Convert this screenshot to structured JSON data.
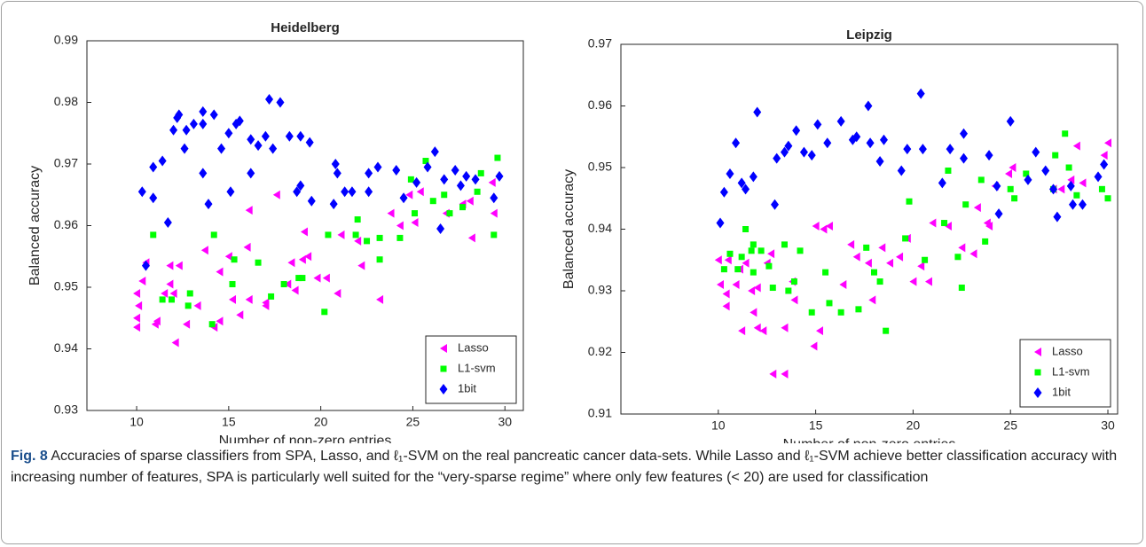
{
  "chart_data": [
    {
      "type": "scatter",
      "title": "Heidelberg",
      "x_label": "Number of non-zero entries",
      "y_label": "Balanced accuracy",
      "xlim": [
        7.3,
        31
      ],
      "ylim": [
        0.93,
        0.99
      ],
      "xticks": [
        10,
        15,
        20,
        25,
        30
      ],
      "yticks": [
        0.93,
        0.94,
        0.95,
        0.96,
        0.97,
        0.98,
        0.99
      ],
      "legend": "lower right",
      "series": [
        {
          "name": "Lasso",
          "color": "#ff00ff",
          "marker": "triangle-left",
          "x": [
            10,
            10,
            10.1,
            10,
            10.3,
            10.5,
            11,
            11.1,
            11.5,
            11.8,
            11.8,
            12,
            12.1,
            12.3,
            12.7,
            13.3,
            13.7,
            14.2,
            14.5,
            14.5,
            15,
            15.2,
            15.6,
            16,
            16.1,
            16.1,
            17,
            17,
            17.6,
            18.2,
            18.4,
            18.6,
            19,
            19.1,
            19.3,
            19.8,
            20.3,
            20.9,
            21.1,
            22,
            22.2,
            23.2,
            23.8,
            24.3,
            24.8,
            25.1,
            25.4,
            26.8,
            27.7,
            28.1,
            28.2,
            29.3,
            29.4
          ],
          "values": [
            0.9435,
            0.945,
            0.947,
            0.949,
            0.951,
            0.954,
            0.944,
            0.9445,
            0.949,
            0.9505,
            0.9535,
            0.949,
            0.941,
            0.9535,
            0.944,
            0.947,
            0.956,
            0.9435,
            0.9445,
            0.9525,
            0.955,
            0.948,
            0.9455,
            0.9565,
            0.9625,
            0.948,
            0.9475,
            0.947,
            0.965,
            0.9505,
            0.954,
            0.9495,
            0.9545,
            0.959,
            0.955,
            0.9515,
            0.9515,
            0.949,
            0.9585,
            0.9575,
            0.9535,
            0.948,
            0.962,
            0.96,
            0.965,
            0.9605,
            0.9655,
            0.962,
            0.9635,
            0.964,
            0.958,
            0.967,
            0.962
          ]
        },
        {
          "name": "L1-svm",
          "color": "#00ff00",
          "marker": "square",
          "x": [
            10.9,
            11.4,
            11.9,
            12.8,
            12.9,
            14.1,
            14.2,
            15.2,
            15.3,
            16.6,
            17.3,
            18,
            18.8,
            19,
            20.2,
            20.4,
            21.9,
            22,
            22.5,
            23.2,
            23.2,
            24.3,
            24.9,
            25.1,
            25.7,
            26.1,
            26.7,
            27,
            27.7,
            28.5,
            28.7,
            29.4,
            29.6
          ],
          "values": [
            0.9585,
            0.948,
            0.948,
            0.947,
            0.949,
            0.944,
            0.9585,
            0.9505,
            0.9545,
            0.954,
            0.9485,
            0.9505,
            0.9515,
            0.9515,
            0.946,
            0.9585,
            0.9585,
            0.961,
            0.9575,
            0.958,
            0.9545,
            0.958,
            0.9675,
            0.962,
            0.9705,
            0.964,
            0.965,
            0.962,
            0.963,
            0.9655,
            0.9685,
            0.9585,
            0.971
          ]
        },
        {
          "name": "1bit",
          "color": "#0000ff",
          "marker": "diamond",
          "x": [
            10.3,
            10.5,
            10.9,
            10.9,
            11.4,
            11.7,
            12,
            12.2,
            12.3,
            12.6,
            12.7,
            13.1,
            13.6,
            13.6,
            13.6,
            13.9,
            14.2,
            14.6,
            15,
            15.1,
            15.4,
            15.6,
            16.2,
            16.2,
            16.6,
            17,
            17.2,
            17.4,
            17.8,
            18.3,
            18.7,
            18.9,
            18.9,
            19.4,
            19.5,
            20.7,
            20.8,
            20.9,
            21.3,
            21.7,
            22.6,
            22.6,
            23.1,
            24.1,
            24.5,
            25.2,
            25.8,
            26.2,
            26.5,
            26.7,
            27.3,
            27.6,
            27.9,
            28.4,
            29.4,
            29.7
          ],
          "values": [
            0.9655,
            0.9535,
            0.9695,
            0.9645,
            0.9705,
            0.9605,
            0.9755,
            0.9775,
            0.978,
            0.9725,
            0.9755,
            0.9765,
            0.9765,
            0.9785,
            0.9685,
            0.9635,
            0.978,
            0.9725,
            0.975,
            0.9655,
            0.9765,
            0.977,
            0.974,
            0.9685,
            0.973,
            0.9745,
            0.9805,
            0.9725,
            0.98,
            0.9745,
            0.9655,
            0.9665,
            0.9745,
            0.9735,
            0.964,
            0.9635,
            0.97,
            0.9685,
            0.9655,
            0.9655,
            0.9685,
            0.9655,
            0.9695,
            0.969,
            0.9645,
            0.967,
            0.9695,
            0.972,
            0.9595,
            0.9675,
            0.969,
            0.9665,
            0.968,
            0.9675,
            0.9645,
            0.968
          ]
        }
      ]
    },
    {
      "type": "scatter",
      "title": "Leipzig",
      "x_label": "Number of non-zero entries",
      "y_label": "Balanced accuracy",
      "xlim": [
        5,
        30.5
      ],
      "ylim": [
        0.91,
        0.97
      ],
      "xticks": [
        10,
        15,
        20,
        25,
        30
      ],
      "yticks": [
        0.91,
        0.92,
        0.93,
        0.94,
        0.95,
        0.96,
        0.97
      ],
      "legend": "lower right",
      "series": [
        {
          "name": "Lasso",
          "color": "#ff00ff",
          "marker": "triangle-left",
          "x": [
            10,
            10.1,
            10.4,
            10.4,
            10.5,
            10.9,
            11.1,
            11.2,
            11.4,
            11.7,
            11.8,
            12,
            12,
            12.3,
            12.5,
            12.7,
            12.8,
            13.4,
            13.4,
            13.8,
            13.9,
            14.9,
            15,
            15.2,
            15.4,
            15.7,
            16.4,
            16.8,
            17.1,
            17.9,
            17.7,
            18.4,
            18.8,
            19.3,
            19.7,
            20,
            20.4,
            20.8,
            21,
            21.8,
            22.5,
            23.1,
            23.3,
            23.8,
            23.9,
            24.2,
            24.9,
            25.1,
            27.2,
            27.6,
            28.1,
            28.4,
            28.7,
            29.8,
            30
          ],
          "values": [
            0.935,
            0.931,
            0.9295,
            0.9275,
            0.935,
            0.931,
            0.9335,
            0.9235,
            0.9345,
            0.93,
            0.9265,
            0.9305,
            0.924,
            0.9235,
            0.9345,
            0.936,
            0.9165,
            0.9165,
            0.924,
            0.9315,
            0.9285,
            0.921,
            0.9405,
            0.9235,
            0.94,
            0.9405,
            0.931,
            0.9375,
            0.9355,
            0.9285,
            0.9345,
            0.937,
            0.9345,
            0.9355,
            0.9385,
            0.9315,
            0.934,
            0.9315,
            0.941,
            0.9405,
            0.937,
            0.936,
            0.9435,
            0.941,
            0.9405,
            0.947,
            0.949,
            0.95,
            0.9465,
            0.9465,
            0.948,
            0.9535,
            0.9475,
            0.952,
            0.954
          ]
        },
        {
          "name": "L1-svm",
          "color": "#00ff00",
          "marker": "square",
          "x": [
            10.3,
            10.6,
            11,
            11.2,
            11.4,
            11.7,
            11.8,
            11.8,
            12.2,
            12.6,
            12.8,
            13.4,
            13.6,
            13.9,
            14.2,
            14.8,
            15.5,
            15.7,
            16.3,
            17.2,
            17.6,
            18,
            18.3,
            18.6,
            19.6,
            19.8,
            20.6,
            21.6,
            21.8,
            22.3,
            22.5,
            22.7,
            23.5,
            23.7,
            25,
            25.2,
            25.8,
            27.2,
            27.3,
            27.8,
            28,
            28.4,
            29.7,
            30
          ],
          "values": [
            0.9335,
            0.936,
            0.9335,
            0.9355,
            0.94,
            0.9365,
            0.9375,
            0.933,
            0.9365,
            0.934,
            0.9305,
            0.9375,
            0.93,
            0.9315,
            0.9365,
            0.9265,
            0.933,
            0.928,
            0.9265,
            0.927,
            0.937,
            0.933,
            0.9315,
            0.9235,
            0.9385,
            0.9445,
            0.935,
            0.941,
            0.9495,
            0.9355,
            0.9305,
            0.944,
            0.948,
            0.938,
            0.9465,
            0.945,
            0.949,
            0.9465,
            0.952,
            0.9555,
            0.95,
            0.9455,
            0.9465,
            0.945
          ]
        },
        {
          "name": "1bit",
          "color": "#0000ff",
          "marker": "diamond",
          "x": [
            10.1,
            10.3,
            10.6,
            10.9,
            11.2,
            11.4,
            11.8,
            12,
            12.9,
            13,
            13.4,
            13.6,
            14,
            14.4,
            14.8,
            15.1,
            15.6,
            16.3,
            16.9,
            17.1,
            17.7,
            17.8,
            18.3,
            18.5,
            19.4,
            19.7,
            20.4,
            20.5,
            21.5,
            21.9,
            22.6,
            22.6,
            23.9,
            24.4,
            24.3,
            25,
            25.9,
            26.3,
            26.8,
            27.2,
            27.4,
            28.1,
            28.2,
            28.7,
            29.5,
            29.8
          ],
          "values": [
            0.941,
            0.946,
            0.949,
            0.954,
            0.9475,
            0.9465,
            0.9485,
            0.959,
            0.944,
            0.9515,
            0.9525,
            0.9535,
            0.956,
            0.9525,
            0.952,
            0.957,
            0.954,
            0.9575,
            0.9545,
            0.955,
            0.96,
            0.954,
            0.951,
            0.9545,
            0.9495,
            0.953,
            0.962,
            0.953,
            0.9475,
            0.953,
            0.9555,
            0.9515,
            0.952,
            0.9425,
            0.947,
            0.9575,
            0.948,
            0.9525,
            0.9495,
            0.9465,
            0.942,
            0.947,
            0.944,
            0.944,
            0.9485,
            0.9505
          ]
        }
      ]
    }
  ],
  "caption": {
    "label": "Fig. 8",
    "text": "Accuracies of sparse classifiers from SPA, Lasso, and ℓ₁-SVM on the real pancreatic cancer data-sets. While Lasso and ℓ₁-SVM achieve better classification accuracy with increasing number of features, SPA is particularly well suited for the “very-sparse regime” where only few features (< 20) are used for classification"
  }
}
